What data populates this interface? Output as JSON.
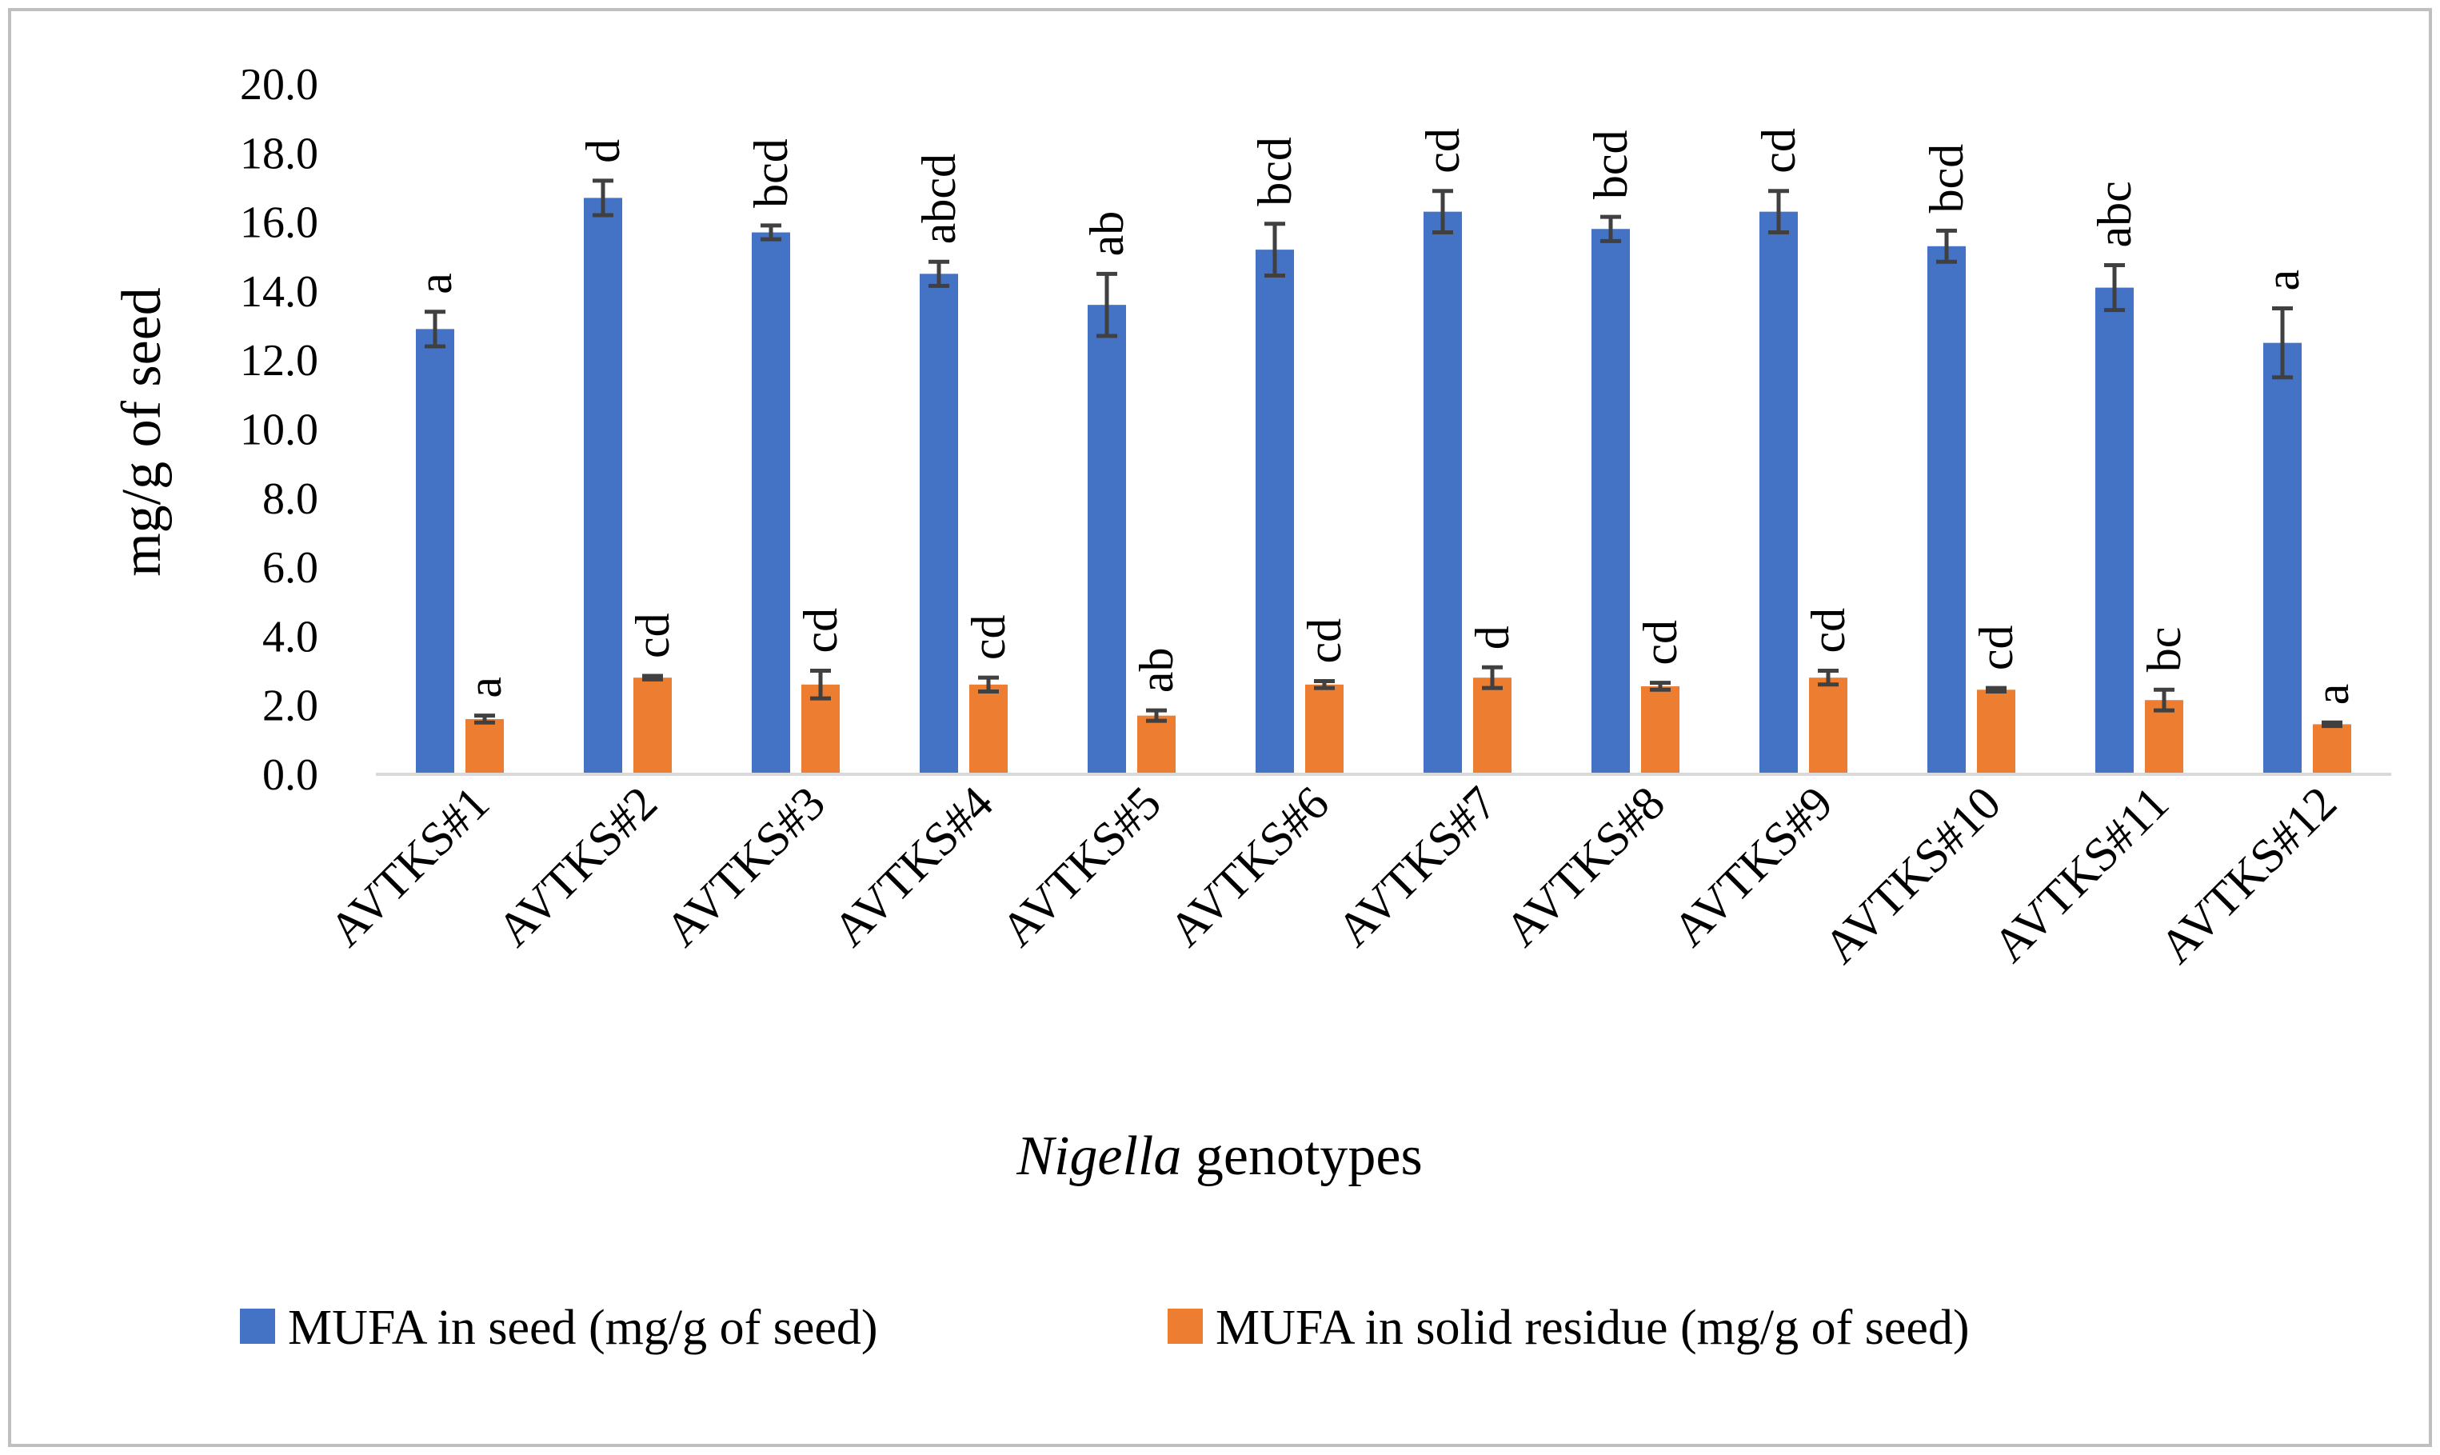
{
  "chart_data": {
    "type": "bar",
    "title": "",
    "xlabel_italic": "Nigella",
    "xlabel_rest": " genotypes",
    "ylabel": "mg/g of seed",
    "ylim": [
      0,
      20
    ],
    "yticks": [
      "0.0",
      "2.0",
      "4.0",
      "6.0",
      "8.0",
      "10.0",
      "12.0",
      "14.0",
      "16.0",
      "18.0",
      "20.0"
    ],
    "categories": [
      "AVTKS#1",
      "AVTKS#2",
      "AVTKS#3",
      "AVTKS#4",
      "AVTKS#5",
      "AVTKS#6",
      "AVTKS#7",
      "AVTKS#8",
      "AVTKS#9",
      "AVTKS#10",
      "AVTKS#11",
      "AVTKS#12"
    ],
    "series": [
      {
        "name": "MUFA in seed (mg/g of seed)",
        "color": "#4472C4",
        "values": [
          12.9,
          16.7,
          15.7,
          14.5,
          13.6,
          15.2,
          16.3,
          15.8,
          16.3,
          15.3,
          14.1,
          12.5
        ],
        "errors": [
          0.5,
          0.5,
          0.2,
          0.35,
          0.9,
          0.75,
          0.6,
          0.35,
          0.6,
          0.45,
          0.65,
          1.0
        ],
        "letters": [
          "a",
          "d",
          "bcd",
          "abcd",
          "ab",
          "bcd",
          "cd",
          "bcd",
          "cd",
          "bcd",
          "abc",
          "a"
        ]
      },
      {
        "name": "MUFA in solid residue (mg/g of seed)",
        "color": "#ED7D31",
        "values": [
          1.6,
          2.8,
          2.6,
          2.6,
          1.7,
          2.6,
          2.8,
          2.55,
          2.8,
          2.45,
          2.15,
          1.45
        ],
        "errors": [
          0.1,
          0.05,
          0.4,
          0.2,
          0.15,
          0.1,
          0.3,
          0.1,
          0.2,
          0.05,
          0.3,
          0.05
        ],
        "letters": [
          "a",
          "cd",
          "cd",
          "cd",
          "ab",
          "cd",
          "d",
          "cd",
          "cd",
          "cd",
          "bc",
          "a"
        ]
      }
    ],
    "legend_position": "bottom"
  },
  "colors": {
    "error_bar": "#404040",
    "axis_line": "#D9D9D9",
    "frame": "#BFBFBF"
  }
}
